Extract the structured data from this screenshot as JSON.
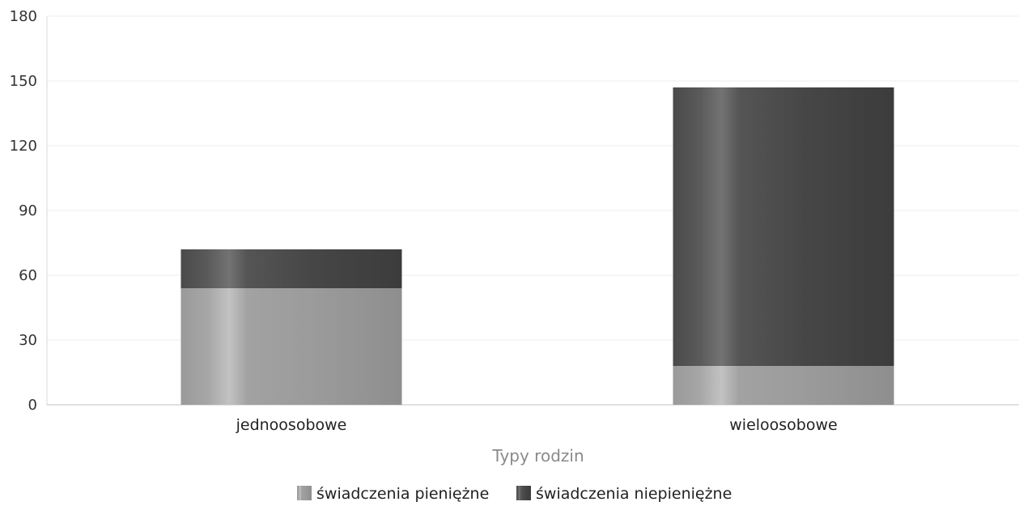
{
  "chart_data": {
    "type": "bar",
    "stacked": true,
    "title": "",
    "xlabel": "Typy rodzin",
    "ylabel": "",
    "ylim": [
      0,
      180
    ],
    "yticks": [
      0,
      30,
      60,
      90,
      120,
      150,
      180
    ],
    "categories": [
      "jednoosobowe",
      "wieloosobowe"
    ],
    "series": [
      {
        "name": "świadczenia pieniężne",
        "values": [
          54,
          18
        ],
        "color": "#9a9a9a"
      },
      {
        "name": "świadczenia niepieniężne",
        "values": [
          18,
          129
        ],
        "color": "#4a4a4a"
      }
    ],
    "grid": true,
    "legend_position": "bottom-center"
  }
}
